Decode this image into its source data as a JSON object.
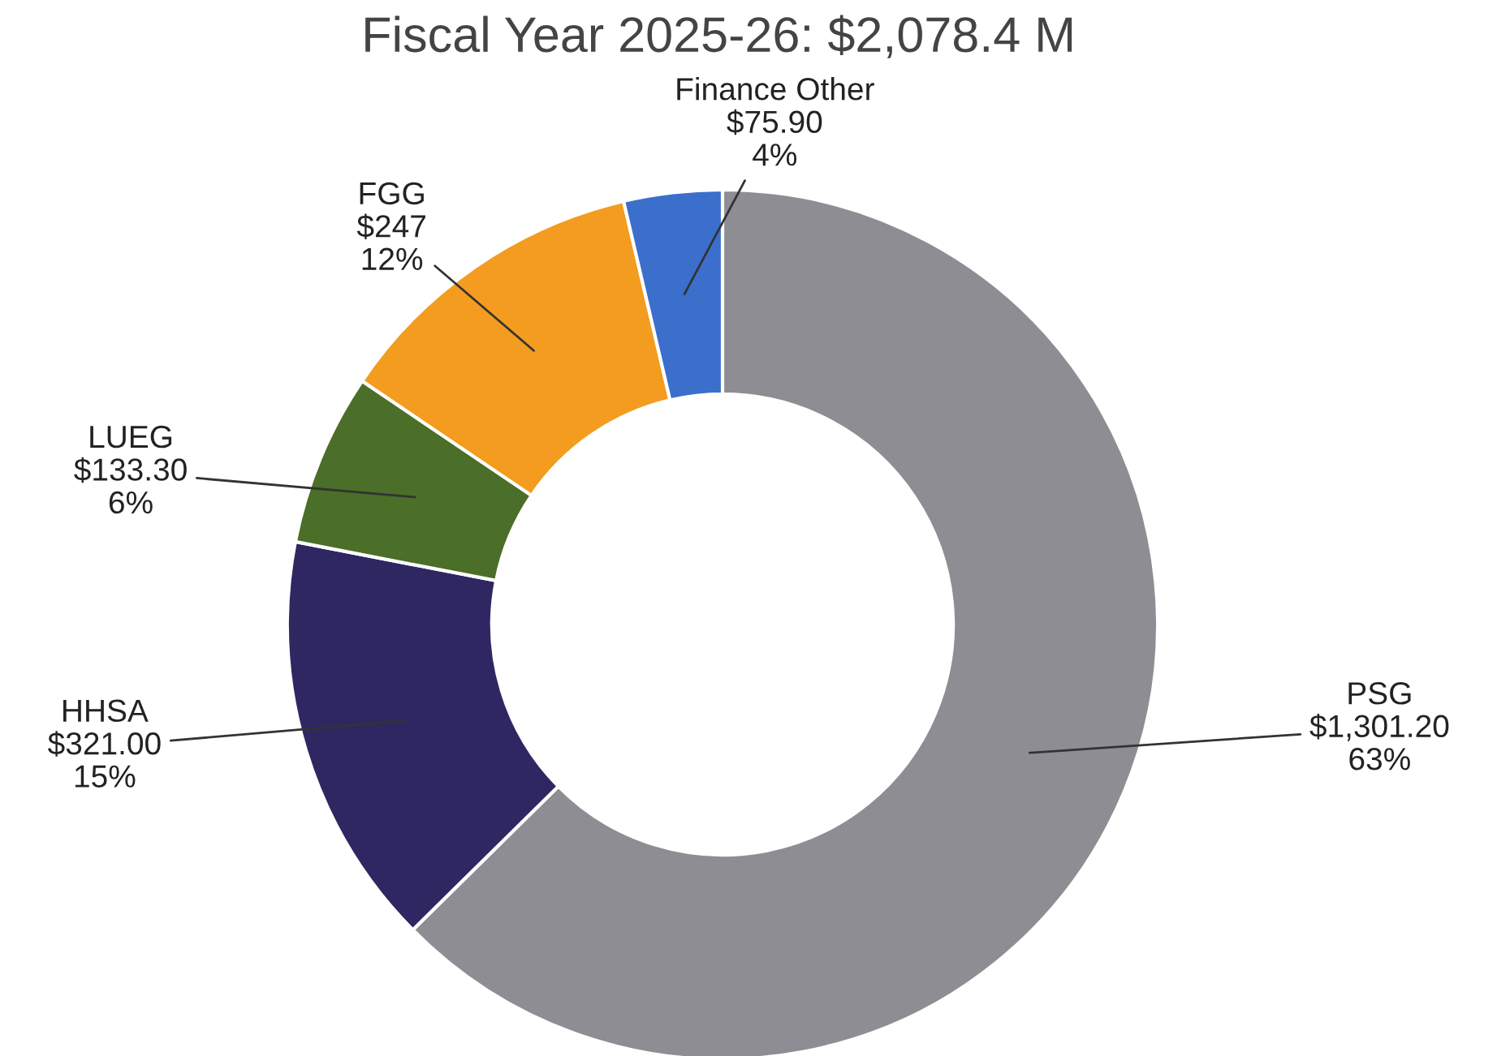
{
  "chart_data": {
    "type": "donut",
    "title": "Fiscal Year 2025-26: $2,078.4 M",
    "categories": [
      "PSG",
      "HHSA",
      "LUEG",
      "FGG",
      "Finance Other"
    ],
    "values": [
      1301.2,
      321.0,
      133.3,
      247,
      75.9
    ],
    "value_labels": [
      "$1,301.20\n63%",
      "$321.00\n15%",
      "$133.30\n6%",
      "$247\n12%",
      "$75.90\n4%"
    ],
    "colors": [
      "#8e8d93",
      "#2f2762",
      "#4b6e28",
      "#f39c1f",
      "#3b6fcb"
    ],
    "legend": false
  }
}
